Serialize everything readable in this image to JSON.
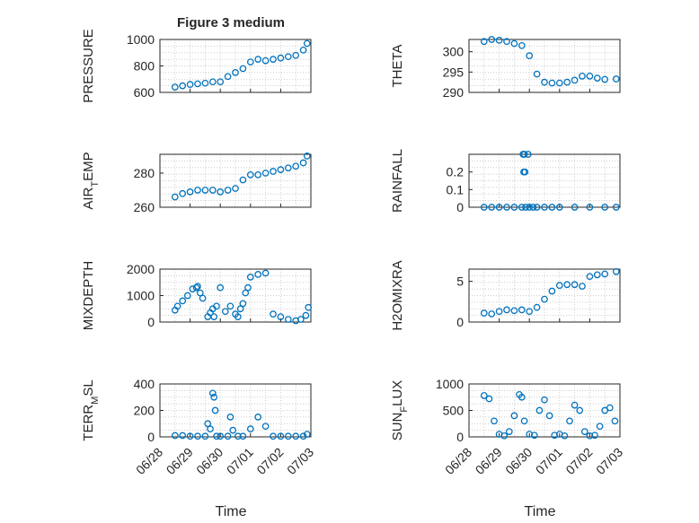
{
  "figure_title": "Figure 3 medium",
  "colors": {
    "marker": "#0072bd",
    "axes": "#262626",
    "grid": "#bdbdbd",
    "background": "#ffffff"
  },
  "x_ticks": [
    "06/28",
    "06/29",
    "06/30",
    "07/01",
    "07/02",
    "07/03"
  ],
  "x_label": "Time",
  "chart_data": [
    {
      "type": "scatter",
      "ylabel": "PRESSURE",
      "ylim": [
        600,
        1000
      ],
      "yticks": [
        "600",
        "800",
        "1000"
      ],
      "grid": true,
      "x": [
        "06/28 12:00",
        "06/28 18:00",
        "06/29 00:00",
        "06/29 06:00",
        "06/29 12:00",
        "06/29 18:00",
        "06/30 00:00",
        "06/30 06:00",
        "06/30 12:00",
        "06/30 18:00",
        "07/01 00:00",
        "07/01 06:00",
        "07/01 12:00",
        "07/01 18:00",
        "07/02 00:00",
        "07/02 06:00",
        "07/02 12:00",
        "07/02 18:00",
        "07/02 21:00"
      ],
      "y": [
        640,
        650,
        660,
        665,
        670,
        680,
        680,
        720,
        750,
        780,
        830,
        850,
        840,
        850,
        860,
        870,
        880,
        920,
        970
      ]
    },
    {
      "type": "scatter",
      "ylabel": "THETA",
      "ylim": [
        290,
        303
      ],
      "yticks": [
        "290",
        "295",
        "300"
      ],
      "grid": true,
      "x": [
        "06/28 12:00",
        "06/28 18:00",
        "06/29 00:00",
        "06/29 06:00",
        "06/29 12:00",
        "06/29 18:00",
        "06/30 00:00",
        "06/30 06:00",
        "06/30 12:00",
        "06/30 18:00",
        "07/01 00:00",
        "07/01 06:00",
        "07/01 12:00",
        "07/01 18:00",
        "07/02 00:00",
        "07/02 06:00",
        "07/02 12:00",
        "07/02 21:00"
      ],
      "y": [
        302.5,
        303,
        302.8,
        302.5,
        302,
        301.5,
        299,
        294.5,
        292.5,
        292.3,
        292.3,
        292.5,
        293,
        294,
        294,
        293.5,
        293.2,
        293.3
      ]
    },
    {
      "type": "scatter",
      "ylabel": "AIR_TEMP",
      "ylim": [
        260,
        291
      ],
      "yticks": [
        "260",
        "280"
      ],
      "grid": true,
      "x": [
        "06/28 12:00",
        "06/28 18:00",
        "06/29 00:00",
        "06/29 06:00",
        "06/29 12:00",
        "06/29 18:00",
        "06/30 00:00",
        "06/30 06:00",
        "06/30 12:00",
        "06/30 18:00",
        "07/01 00:00",
        "07/01 06:00",
        "07/01 12:00",
        "07/01 18:00",
        "07/02 00:00",
        "07/02 06:00",
        "07/02 12:00",
        "07/02 18:00",
        "07/02 21:00"
      ],
      "y": [
        266,
        268,
        269,
        270,
        270,
        270,
        269,
        270,
        271,
        276,
        279,
        279,
        280,
        281,
        282,
        283,
        284,
        286,
        290
      ]
    },
    {
      "type": "scatter",
      "ylabel": "RAINFALL",
      "ylim": [
        0,
        0.3
      ],
      "yticks": [
        "0",
        "0.1",
        "0.2"
      ],
      "grid": true,
      "x": [
        "06/28 12:00",
        "06/28 18:00",
        "06/29 00:00",
        "06/29 06:00",
        "06/29 12:00",
        "06/29 18:00",
        "06/29 21:00",
        "06/30 00:00",
        "06/30 03:00",
        "06/30 06:00",
        "06/30 12:00",
        "06/30 18:00",
        "07/01 00:00",
        "07/01 12:00",
        "07/02 00:00",
        "07/02 12:00",
        "07/02 21:00",
        "06/29 19:00",
        "06/29 20:00",
        "06/29 23:00",
        "06/29 19:30",
        "06/29 20:30"
      ],
      "y": [
        0,
        0,
        0,
        0,
        0,
        0,
        0,
        0,
        0,
        0,
        0,
        0,
        0,
        0,
        0,
        0,
        0,
        0.3,
        0.3,
        0.3,
        0.2,
        0.2
      ]
    },
    {
      "type": "scatter",
      "ylabel": "MIXDEPTH",
      "ylim": [
        0,
        2000
      ],
      "yticks": [
        "0",
        "1000",
        "2000"
      ],
      "grid": true,
      "x": [
        "06/28 12:00",
        "06/28 14:00",
        "06/28 18:00",
        "06/28 22:00",
        "06/29 02:00",
        "06/29 05:00",
        "06/29 06:00",
        "06/29 08:00",
        "06/29 10:00",
        "06/29 14:00",
        "06/29 16:00",
        "06/29 18:00",
        "06/29 19:00",
        "06/29 21:00",
        "06/30 00:00",
        "06/30 04:00",
        "06/30 08:00",
        "06/30 12:00",
        "06/30 14:00",
        "06/30 16:00",
        "06/30 18:00",
        "06/30 20:00",
        "06/30 22:00",
        "07/01 00:00",
        "07/01 06:00",
        "07/01 12:00",
        "07/01 18:00",
        "07/02 00:00",
        "07/02 06:00",
        "07/02 12:00",
        "07/02 16:00",
        "07/02 20:00",
        "07/02 22:00"
      ],
      "y": [
        450,
        600,
        800,
        1000,
        1250,
        1300,
        1350,
        1100,
        900,
        200,
        350,
        500,
        200,
        600,
        1300,
        400,
        600,
        300,
        200,
        500,
        700,
        1100,
        1300,
        1700,
        1800,
        1850,
        300,
        200,
        100,
        50,
        100,
        250,
        550
      ]
    },
    {
      "type": "scatter",
      "ylabel": "H2OMIXRA",
      "ylim": [
        0,
        6.5
      ],
      "yticks": [
        "0",
        "5"
      ],
      "grid": true,
      "x": [
        "06/28 12:00",
        "06/28 18:00",
        "06/29 00:00",
        "06/29 06:00",
        "06/29 12:00",
        "06/29 18:00",
        "06/30 00:00",
        "06/30 06:00",
        "06/30 12:00",
        "06/30 18:00",
        "07/01 00:00",
        "07/01 06:00",
        "07/01 12:00",
        "07/01 18:00",
        "07/02 00:00",
        "07/02 06:00",
        "07/02 12:00",
        "07/02 21:00"
      ],
      "y": [
        1.1,
        1.0,
        1.3,
        1.5,
        1.4,
        1.5,
        1.3,
        1.8,
        2.8,
        3.8,
        4.5,
        4.6,
        4.6,
        4.4,
        5.6,
        5.8,
        5.9,
        6.2
      ]
    },
    {
      "type": "scatter",
      "ylabel": "TERR_MSL",
      "ylim": [
        0,
        400
      ],
      "yticks": [
        "0",
        "200",
        "400"
      ],
      "grid": true,
      "x": [
        "06/28 12:00",
        "06/28 18:00",
        "06/29 00:00",
        "06/29 06:00",
        "06/29 12:00",
        "06/29 14:00",
        "06/29 16:00",
        "06/29 18:00",
        "06/29 19:00",
        "06/29 20:00",
        "06/29 21:00",
        "06/30 00:00",
        "06/30 06:00",
        "06/30 08:00",
        "06/30 10:00",
        "06/30 14:00",
        "06/30 18:00",
        "07/01 00:00",
        "07/01 06:00",
        "07/01 12:00",
        "07/01 18:00",
        "07/02 00:00",
        "07/02 06:00",
        "07/02 12:00",
        "07/02 18:00",
        "07/02 21:00"
      ],
      "y": [
        10,
        10,
        5,
        5,
        5,
        100,
        60,
        330,
        300,
        200,
        5,
        5,
        5,
        150,
        50,
        5,
        5,
        60,
        150,
        80,
        5,
        5,
        5,
        5,
        5,
        20
      ]
    },
    {
      "type": "scatter",
      "ylabel": "SUN_FLUX",
      "ylim": [
        0,
        1000
      ],
      "yticks": [
        "0",
        "500",
        "1000"
      ],
      "grid": true,
      "x": [
        "06/28 12:00",
        "06/28 16:00",
        "06/28 20:00",
        "06/29 00:00",
        "06/29 04:00",
        "06/29 08:00",
        "06/29 12:00",
        "06/29 16:00",
        "06/29 18:00",
        "06/29 20:00",
        "06/30 00:00",
        "06/30 04:00",
        "06/30 08:00",
        "06/30 12:00",
        "06/30 16:00",
        "06/30 20:00",
        "07/01 00:00",
        "07/01 04:00",
        "07/01 08:00",
        "07/01 12:00",
        "07/01 16:00",
        "07/01 20:00",
        "07/02 00:00",
        "07/02 04:00",
        "07/02 08:00",
        "07/02 12:00",
        "07/02 16:00",
        "07/02 20:00"
      ],
      "y": [
        780,
        720,
        300,
        50,
        20,
        100,
        400,
        800,
        750,
        300,
        50,
        30,
        500,
        700,
        400,
        30,
        50,
        20,
        300,
        600,
        500,
        100,
        20,
        30,
        200,
        500,
        550,
        300
      ]
    }
  ]
}
